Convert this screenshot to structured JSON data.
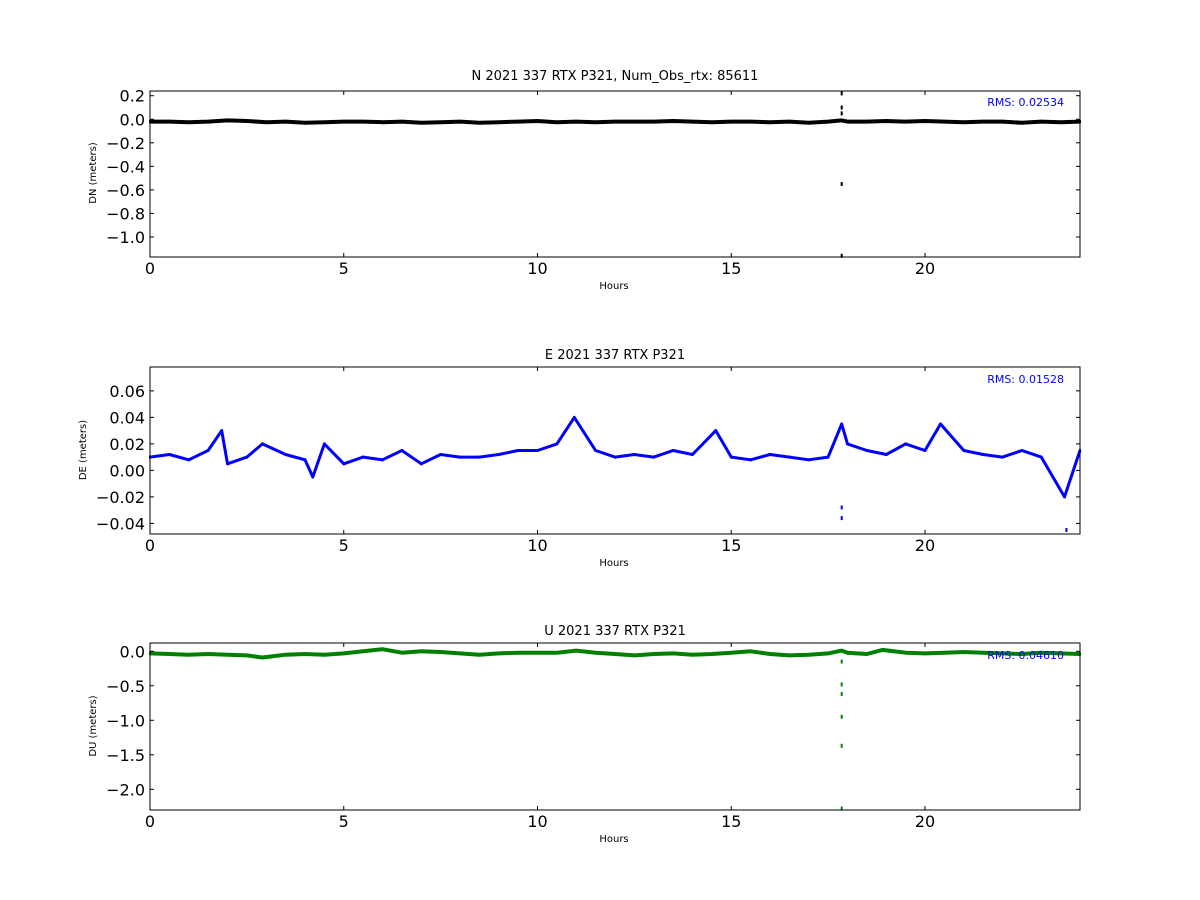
{
  "chart_data": [
    {
      "type": "scatter",
      "title": "N 2021 337 RTX  P321, Num_Obs_rtx: 85611",
      "xlabel": "Hours",
      "ylabel": "DN (meters)",
      "xlim": [
        0,
        24
      ],
      "ylim": [
        -1.17,
        0.24
      ],
      "xticks": [
        0,
        5,
        10,
        15,
        20
      ],
      "yticks": [
        0.2,
        0.0,
        -0.2,
        -0.4,
        -0.6,
        -0.8,
        -1.0
      ],
      "ytick_labels": [
        "0.2",
        "0.0",
        "−0.2",
        "−0.4",
        "−0.6",
        "−0.8",
        "−1.0"
      ],
      "color": "#000000",
      "rms_label": "RMS:  0.02534",
      "rms_color": "#0000ff",
      "series": [
        {
          "x": [
            0.0,
            0.5,
            1.0,
            1.5,
            2.0,
            2.5,
            3.0,
            3.5,
            4.0,
            4.5,
            5.0,
            5.5,
            6.0,
            6.5,
            7.0,
            7.5,
            8.0,
            8.5,
            9.0,
            9.5,
            10.0,
            10.5,
            11.0,
            11.5,
            12.0,
            12.5,
            13.0,
            13.5,
            14.0,
            14.5,
            15.0,
            15.5,
            16.0,
            16.5,
            17.0,
            17.5,
            17.85,
            18.0,
            18.5,
            19.0,
            19.5,
            20.0,
            20.5,
            21.0,
            21.5,
            22.0,
            22.5,
            23.0,
            23.5,
            24.0
          ],
          "y": [
            -0.02,
            -0.02,
            -0.025,
            -0.02,
            -0.01,
            -0.015,
            -0.025,
            -0.02,
            -0.03,
            -0.025,
            -0.02,
            -0.02,
            -0.025,
            -0.02,
            -0.03,
            -0.025,
            -0.02,
            -0.03,
            -0.025,
            -0.02,
            -0.015,
            -0.025,
            -0.02,
            -0.025,
            -0.02,
            -0.02,
            -0.02,
            -0.015,
            -0.02,
            -0.025,
            -0.02,
            -0.02,
            -0.025,
            -0.02,
            -0.03,
            -0.02,
            -0.01,
            -0.02,
            -0.02,
            -0.015,
            -0.02,
            -0.015,
            -0.02,
            -0.025,
            -0.02,
            -0.02,
            -0.03,
            -0.02,
            -0.025,
            -0.02
          ]
        }
      ],
      "outliers": [
        {
          "x": 17.85,
          "y": 0.22
        },
        {
          "x": 17.85,
          "y": 0.1
        },
        {
          "x": 17.85,
          "y": 0.05
        },
        {
          "x": 17.85,
          "y": -0.55
        },
        {
          "x": 17.85,
          "y": -1.16
        }
      ]
    },
    {
      "type": "scatter",
      "title": "E 2021 337 RTX  P321",
      "xlabel": "Hours",
      "ylabel": "DE (meters)",
      "xlim": [
        0,
        24
      ],
      "ylim": [
        -0.048,
        0.078
      ],
      "xticks": [
        0,
        5,
        10,
        15,
        20
      ],
      "yticks": [
        0.06,
        0.04,
        0.02,
        0.0,
        -0.02,
        -0.04
      ],
      "ytick_labels": [
        "0.06",
        "0.04",
        "0.02",
        "0.00",
        "−0.02",
        "−0.04"
      ],
      "color": "#0000ff",
      "rms_label": "RMS:  0.01528",
      "rms_color": "#0000ff",
      "series": [
        {
          "x": [
            0.0,
            0.5,
            1.0,
            1.5,
            1.85,
            2.0,
            2.5,
            2.9,
            3.5,
            4.0,
            4.2,
            4.5,
            5.0,
            5.5,
            6.0,
            6.5,
            7.0,
            7.5,
            8.0,
            8.5,
            9.0,
            9.5,
            10.0,
            10.5,
            10.95,
            11.5,
            12.0,
            12.5,
            13.0,
            13.5,
            14.0,
            14.6,
            15.0,
            15.5,
            16.0,
            16.5,
            17.0,
            17.5,
            17.85,
            18.0,
            18.5,
            19.0,
            19.5,
            20.0,
            20.4,
            21.0,
            21.5,
            22.0,
            22.5,
            23.0,
            23.6,
            24.0
          ],
          "y": [
            0.01,
            0.012,
            0.008,
            0.015,
            0.03,
            0.005,
            0.01,
            0.02,
            0.012,
            0.008,
            -0.005,
            0.02,
            0.005,
            0.01,
            0.008,
            0.015,
            0.005,
            0.012,
            0.01,
            0.01,
            0.012,
            0.015,
            0.015,
            0.02,
            0.04,
            0.015,
            0.01,
            0.012,
            0.01,
            0.015,
            0.012,
            0.03,
            0.01,
            0.008,
            0.012,
            0.01,
            0.008,
            0.01,
            0.035,
            0.02,
            0.015,
            0.012,
            0.02,
            0.015,
            0.035,
            0.015,
            0.012,
            0.01,
            0.015,
            0.01,
            -0.02,
            0.015
          ]
        }
      ],
      "outliers": [
        {
          "x": 17.85,
          "y": -0.036
        },
        {
          "x": 17.85,
          "y": -0.028
        },
        {
          "x": 23.65,
          "y": -0.045
        }
      ]
    },
    {
      "type": "scatter",
      "title": "U 2021 337 RTX  P321",
      "xlabel": "Hours",
      "ylabel": "DU (meters)",
      "xlim": [
        0,
        24
      ],
      "ylim": [
        -2.3,
        0.12
      ],
      "xticks": [
        0,
        5,
        10,
        15,
        20
      ],
      "yticks": [
        0.0,
        -0.5,
        -1.0,
        -1.5,
        -2.0
      ],
      "ytick_labels": [
        "0.0",
        "−0.5",
        "−1.0",
        "−1.5",
        "−2.0"
      ],
      "color": "#008000",
      "rms_label": "RMS:  0.04610",
      "rms_color": "#0000ff",
      "series": [
        {
          "x": [
            0.0,
            0.5,
            1.0,
            1.5,
            2.0,
            2.5,
            2.9,
            3.5,
            4.0,
            4.5,
            5.0,
            5.5,
            6.0,
            6.5,
            7.0,
            7.5,
            8.0,
            8.5,
            9.0,
            9.5,
            10.0,
            10.5,
            11.0,
            11.5,
            12.0,
            12.5,
            13.0,
            13.5,
            14.0,
            14.5,
            15.0,
            15.5,
            16.0,
            16.5,
            17.0,
            17.5,
            17.85,
            18.0,
            18.5,
            18.9,
            19.5,
            20.0,
            20.5,
            21.0,
            21.5,
            22.0,
            22.5,
            23.0,
            23.5,
            24.0
          ],
          "y": [
            -0.03,
            -0.04,
            -0.05,
            -0.04,
            -0.05,
            -0.06,
            -0.09,
            -0.05,
            -0.04,
            -0.05,
            -0.03,
            0.0,
            0.03,
            -0.02,
            0.0,
            -0.01,
            -0.03,
            -0.05,
            -0.03,
            -0.02,
            -0.02,
            -0.02,
            0.01,
            -0.02,
            -0.04,
            -0.06,
            -0.04,
            -0.03,
            -0.05,
            -0.04,
            -0.02,
            0.0,
            -0.04,
            -0.06,
            -0.05,
            -0.03,
            0.01,
            -0.02,
            -0.04,
            0.02,
            -0.02,
            -0.03,
            -0.02,
            -0.01,
            -0.02,
            -0.03,
            -0.04,
            -0.02,
            -0.03,
            -0.04
          ]
        }
      ],
      "outliers": [
        {
          "x": 17.85,
          "y": -0.15
        },
        {
          "x": 17.85,
          "y": -0.48
        },
        {
          "x": 17.85,
          "y": -0.62
        },
        {
          "x": 17.85,
          "y": -0.95
        },
        {
          "x": 17.85,
          "y": -1.37
        },
        {
          "x": 17.85,
          "y": -2.28
        }
      ]
    }
  ]
}
